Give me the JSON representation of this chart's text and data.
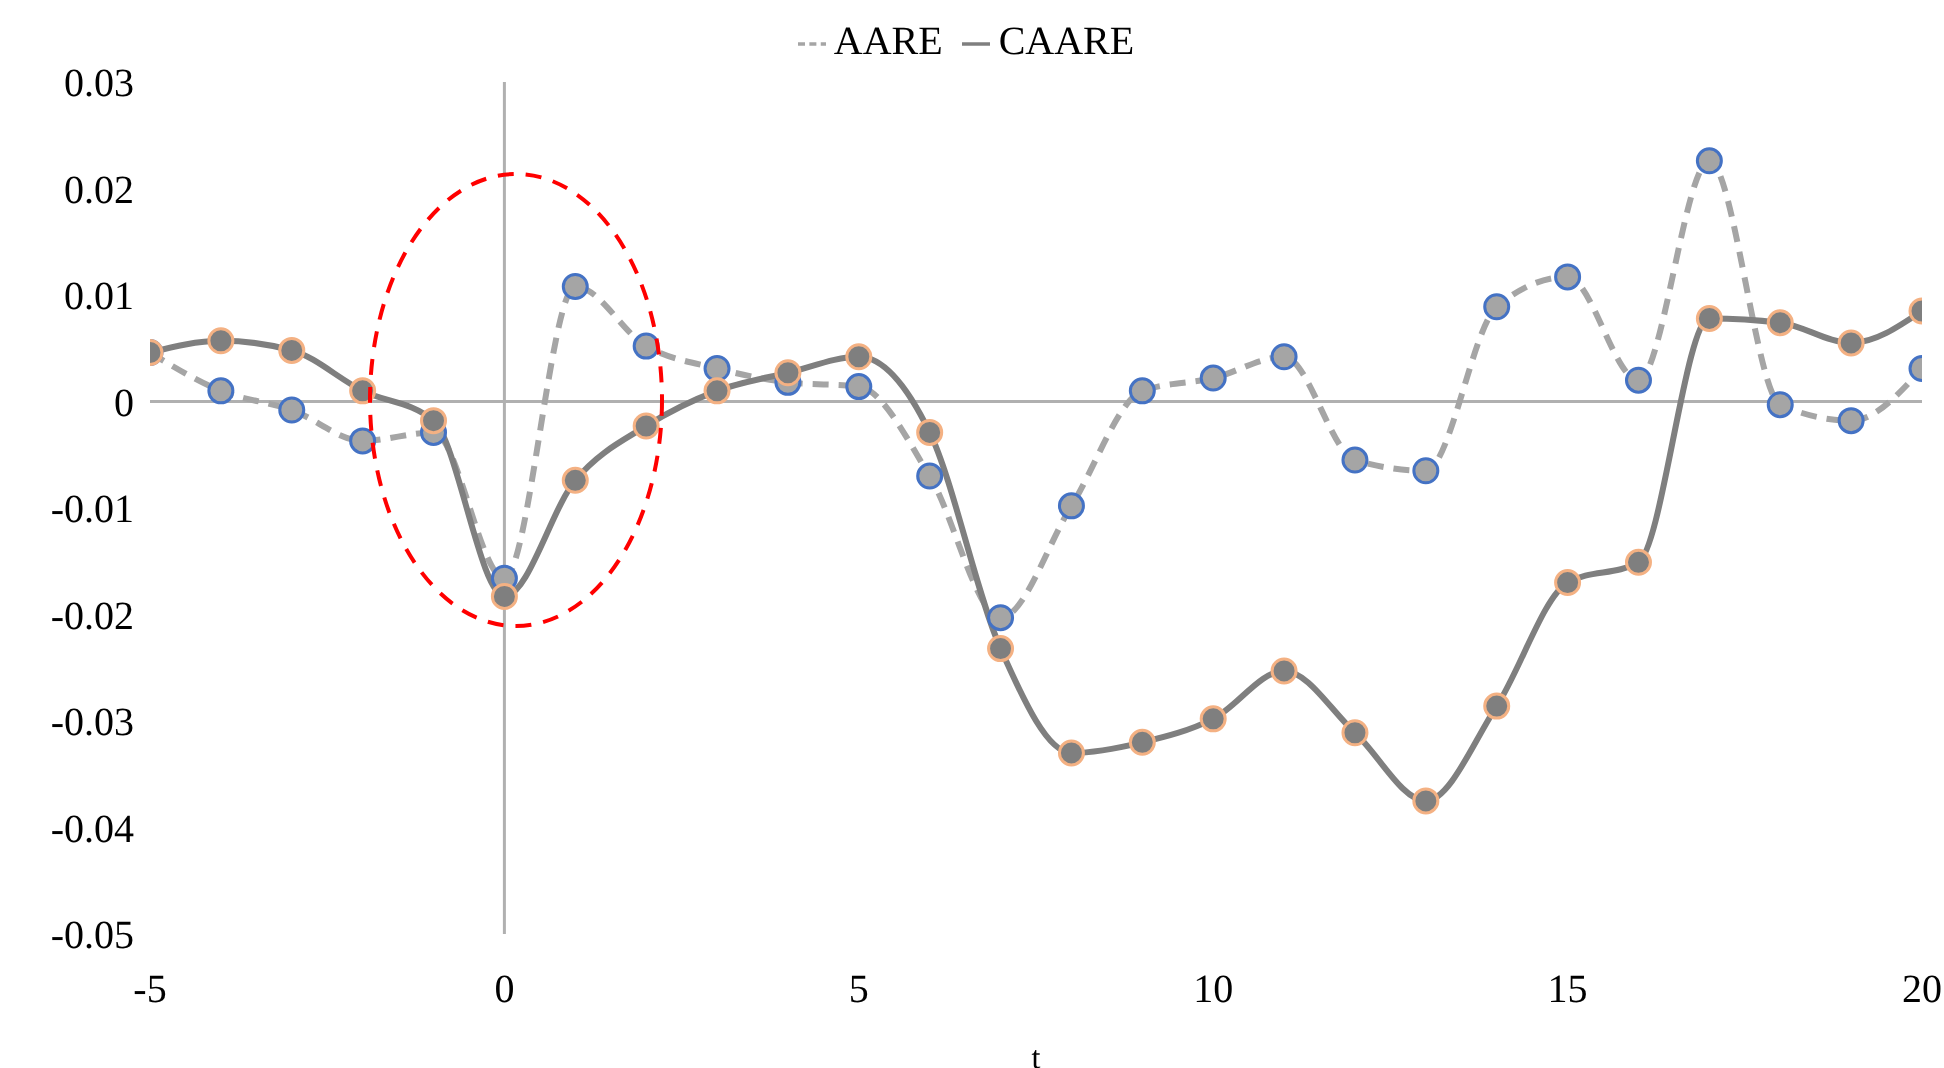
{
  "chart_data": {
    "type": "line",
    "xlabel": "t",
    "x": [
      -5,
      -4,
      -3,
      -2,
      -1,
      0,
      1,
      2,
      3,
      4,
      5,
      6,
      7,
      8,
      9,
      10,
      11,
      12,
      13,
      14,
      15,
      16,
      17,
      18,
      19,
      20
    ],
    "series": [
      {
        "name": "AARE",
        "color": "#a5a5a5",
        "line_style": "dashed",
        "values": [
          0.0046,
          0.001,
          -0.0008,
          -0.0037,
          -0.0029,
          -0.0166,
          0.0108,
          0.0052,
          0.0031,
          0.0018,
          0.0014,
          -0.007,
          -0.0203,
          -0.0098,
          0.001,
          0.0022,
          0.0042,
          -0.0055,
          -0.0065,
          0.0089,
          0.0117,
          0.002,
          0.0226,
          -0.0003,
          -0.0018,
          0.0031
        ]
      },
      {
        "name": "CAARE",
        "color": "#7f7f7f",
        "line_style": "solid",
        "values": [
          0.0046,
          0.0057,
          0.0048,
          0.001,
          -0.0018,
          -0.0183,
          -0.0074,
          -0.0023,
          0.001,
          0.0027,
          0.0042,
          -0.0029,
          -0.0232,
          -0.033,
          -0.032,
          -0.0298,
          -0.0253,
          -0.0311,
          -0.0375,
          -0.0286,
          -0.017,
          -0.0151,
          0.0078,
          0.0074,
          0.0055,
          0.0085
        ]
      }
    ],
    "xlim": [
      -5,
      20
    ],
    "xticks": [
      -5,
      0,
      5,
      10,
      15,
      20
    ],
    "ylim": [
      -0.05,
      0.03
    ],
    "yticks": [
      -0.05,
      -0.04,
      -0.03,
      -0.02,
      -0.01,
      0,
      0.01,
      0.02,
      0.03
    ],
    "legend": "top",
    "marker": "circle"
  }
}
